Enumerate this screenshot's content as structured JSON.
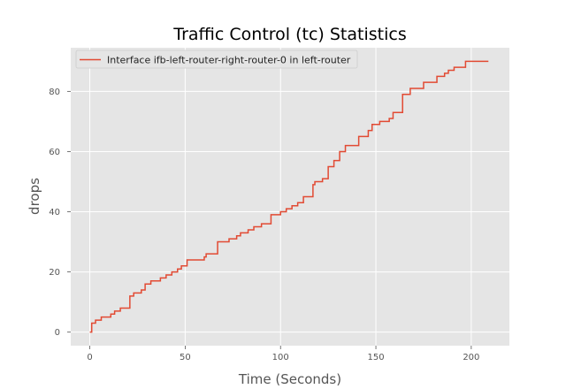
{
  "chart_data": {
    "type": "line",
    "title": "Traffic Control (tc) Statistics",
    "xlabel": "Time (Seconds)",
    "ylabel": "drops",
    "xlim": [
      -10,
      220
    ],
    "ylim": [
      -4.5,
      94.5
    ],
    "xticks": [
      0,
      50,
      100,
      150,
      200
    ],
    "yticks": [
      0,
      20,
      40,
      60,
      80
    ],
    "grid": true,
    "legend_position": "top-left",
    "series": [
      {
        "name": "Interface ifb-left-router-right-router-0 in left-router",
        "color": "#E24A33",
        "step": "post",
        "x": [
          0,
          1,
          3,
          6,
          11,
          13,
          16,
          20,
          21,
          23,
          27,
          29,
          32,
          37,
          40,
          43,
          46,
          48,
          51,
          60,
          61,
          67,
          73,
          77,
          79,
          83,
          86,
          90,
          95,
          100,
          103,
          106,
          109,
          112,
          117,
          118,
          122,
          125,
          128,
          131,
          134,
          141,
          146,
          148,
          152,
          157,
          159,
          162,
          164,
          166,
          168,
          175,
          182,
          186,
          188,
          191,
          194,
          197,
          200,
          209
        ],
        "y": [
          0,
          3,
          4,
          5,
          6,
          7,
          8,
          8,
          12,
          13,
          14,
          16,
          17,
          18,
          19,
          20,
          21,
          22,
          24,
          25,
          26,
          30,
          31,
          32,
          33,
          34,
          35,
          36,
          39,
          40,
          41,
          42,
          43,
          45,
          49,
          50,
          51,
          55,
          57,
          60,
          62,
          65,
          67,
          69,
          70,
          71,
          73,
          73,
          79,
          79,
          81,
          83,
          85,
          86,
          87,
          88,
          88,
          90,
          90,
          90
        ]
      }
    ]
  }
}
